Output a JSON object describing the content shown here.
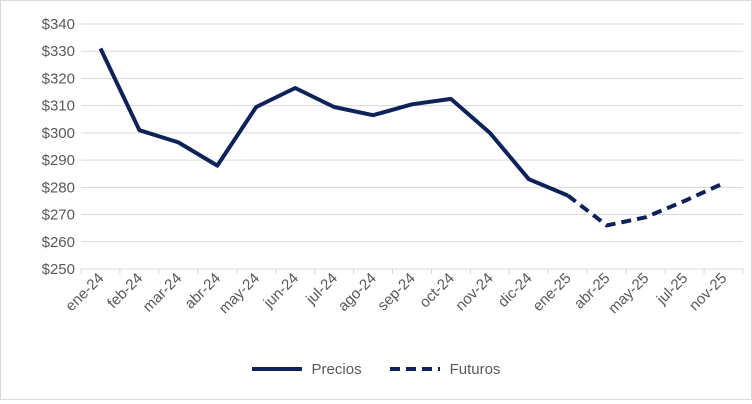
{
  "chart_data": {
    "type": "line",
    "categories": [
      "ene-24",
      "feb-24",
      "mar-24",
      "abr-24",
      "may-24",
      "jun-24",
      "jul-24",
      "ago-24",
      "sep-24",
      "oct-24",
      "nov-24",
      "dic-24",
      "ene-25",
      "abr-25",
      "may-25",
      "jul-25",
      "nov-25"
    ],
    "series": [
      {
        "name": "Precios",
        "style": "solid",
        "values": [
          331,
          301,
          296.5,
          288,
          309.5,
          316.5,
          309.5,
          306.5,
          310.5,
          312.5,
          300,
          283,
          277,
          null,
          null,
          null,
          null
        ]
      },
      {
        "name": "Futuros",
        "style": "dashed",
        "values": [
          null,
          null,
          null,
          null,
          null,
          null,
          null,
          null,
          null,
          null,
          null,
          null,
          277,
          266,
          269,
          275,
          281.5
        ]
      }
    ],
    "ylim": [
      250,
      340
    ],
    "yticks": [
      250,
      260,
      270,
      280,
      290,
      300,
      310,
      320,
      330,
      340
    ],
    "ytick_labels": [
      "$250",
      "$260",
      "$270",
      "$280",
      "$290",
      "$300",
      "$310",
      "$320",
      "$330",
      "$340"
    ],
    "grid": true,
    "legend_position": "bottom",
    "colors": {
      "line": "#0d2258",
      "grid": "#d9d9d9",
      "text": "#595959"
    }
  }
}
